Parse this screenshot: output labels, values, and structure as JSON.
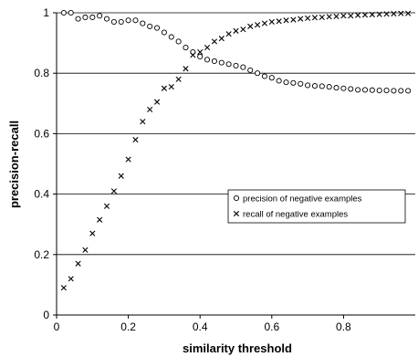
{
  "chart_data": {
    "type": "scatter",
    "xlabel": "similarity threshold",
    "ylabel": "precision-recall",
    "xlim": [
      0,
      1
    ],
    "ylim": [
      0,
      1
    ],
    "x_ticks": [
      0,
      0.2,
      0.4,
      0.6,
      0.8
    ],
    "y_ticks": [
      0,
      0.2,
      0.4,
      0.6,
      0.8,
      1
    ],
    "x_tick_labels": [
      "0",
      "0.2",
      "0.4",
      "0.6",
      "0.8"
    ],
    "y_tick_labels": [
      "0",
      "0.2",
      "0.4",
      "0.6",
      "0.8",
      "1"
    ],
    "grid": "horizontal",
    "legend_position": "center-right",
    "series": [
      {
        "name": "precision of negative examples",
        "marker": "circle",
        "x": [
          0.02,
          0.04,
          0.06,
          0.08,
          0.1,
          0.12,
          0.14,
          0.16,
          0.18,
          0.2,
          0.22,
          0.24,
          0.26,
          0.28,
          0.3,
          0.32,
          0.34,
          0.36,
          0.38,
          0.4,
          0.42,
          0.44,
          0.46,
          0.48,
          0.5,
          0.52,
          0.54,
          0.56,
          0.58,
          0.6,
          0.62,
          0.64,
          0.66,
          0.68,
          0.7,
          0.72,
          0.74,
          0.76,
          0.78,
          0.8,
          0.82,
          0.84,
          0.86,
          0.88,
          0.9,
          0.92,
          0.94,
          0.96,
          0.98
        ],
        "values": [
          1.0,
          1.0,
          0.98,
          0.985,
          0.985,
          0.99,
          0.98,
          0.97,
          0.97,
          0.975,
          0.975,
          0.965,
          0.955,
          0.95,
          0.935,
          0.92,
          0.905,
          0.885,
          0.87,
          0.855,
          0.845,
          0.84,
          0.835,
          0.83,
          0.825,
          0.82,
          0.81,
          0.8,
          0.79,
          0.785,
          0.775,
          0.77,
          0.768,
          0.765,
          0.76,
          0.758,
          0.757,
          0.755,
          0.752,
          0.75,
          0.748,
          0.745,
          0.745,
          0.744,
          0.743,
          0.743,
          0.742,
          0.742,
          0.742
        ]
      },
      {
        "name": "recall of negative examples",
        "marker": "x",
        "x": [
          0.02,
          0.04,
          0.06,
          0.08,
          0.1,
          0.12,
          0.14,
          0.16,
          0.18,
          0.2,
          0.22,
          0.24,
          0.26,
          0.28,
          0.3,
          0.32,
          0.34,
          0.36,
          0.38,
          0.4,
          0.42,
          0.44,
          0.46,
          0.48,
          0.5,
          0.52,
          0.54,
          0.56,
          0.58,
          0.6,
          0.62,
          0.64,
          0.66,
          0.68,
          0.7,
          0.72,
          0.74,
          0.76,
          0.78,
          0.8,
          0.82,
          0.84,
          0.86,
          0.88,
          0.9,
          0.92,
          0.94,
          0.96,
          0.98
        ],
        "values": [
          0.09,
          0.12,
          0.17,
          0.215,
          0.27,
          0.315,
          0.36,
          0.41,
          0.46,
          0.515,
          0.58,
          0.64,
          0.68,
          0.705,
          0.75,
          0.755,
          0.78,
          0.815,
          0.86,
          0.87,
          0.885,
          0.905,
          0.915,
          0.93,
          0.94,
          0.945,
          0.955,
          0.96,
          0.965,
          0.97,
          0.972,
          0.975,
          0.977,
          0.98,
          0.982,
          0.984,
          0.985,
          0.987,
          0.988,
          0.99,
          0.99,
          0.992,
          0.993,
          0.994,
          0.995,
          0.996,
          0.997,
          0.998,
          0.998
        ]
      }
    ]
  }
}
